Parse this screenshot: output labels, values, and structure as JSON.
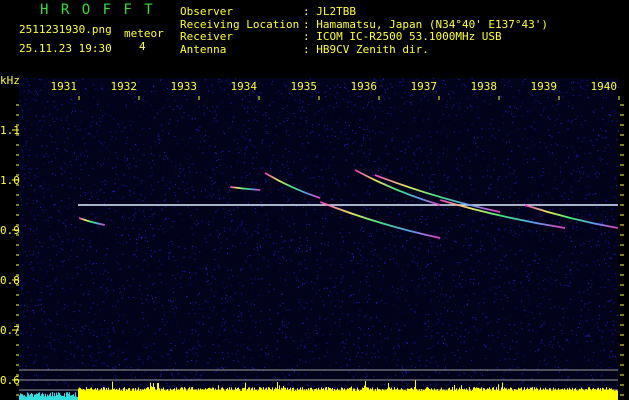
{
  "header": {
    "app_title": "H R O F F T",
    "filename": "2511231930.png",
    "datetime": "25.11.23 19:30",
    "meteor_label": "meteor",
    "meteor_count": "4",
    "info": [
      {
        "label": "Observer",
        "value": ": JL2TBB"
      },
      {
        "label": "Receiving Location",
        "value": ": Hamamatsu, Japan (N34°40' E137°43')"
      },
      {
        "label": "Receiver",
        "value": ": ICOM IC-R2500 53.1000MHz USB"
      },
      {
        "label": "Antenna",
        "value": ": HB9CV Zenith dir."
      }
    ]
  },
  "colors": {
    "text": "#ffff33",
    "title": "#33dd33",
    "background_noise": "#1a1a8c",
    "carrier": "#ddeeff",
    "level_bar": "#ffff00",
    "level_bar_start": "#33dddd"
  },
  "chart_data": {
    "type": "heatmap",
    "ylabel": "kHz",
    "x_ticks": [
      "1931",
      "1932",
      "1933",
      "1934",
      "1935",
      "1936",
      "1937",
      "1938",
      "1939",
      "1940"
    ],
    "y_ticks": [
      "1.1",
      "1.0",
      "0.9",
      "0.8",
      "0.7",
      "0.6"
    ],
    "xlim": [
      1930.8,
      1940.1
    ],
    "ylim": [
      0.56,
      1.2
    ],
    "carrier_khz": 0.95,
    "meteor_traces": [
      {
        "t": [
          1934.1,
          1935.02
        ],
        "f": [
          1.014,
          0.964
        ]
      },
      {
        "t": [
          1935.6,
          1937.02
        ],
        "f": [
          1.02,
          0.95
        ]
      },
      {
        "t": [
          1935.93,
          1938.02
        ],
        "f": [
          1.01,
          0.936
        ]
      },
      {
        "t": [
          1935.02,
          1937.02
        ],
        "f": [
          0.956,
          0.884
        ]
      },
      {
        "t": [
          1937.02,
          1939.1
        ],
        "f": [
          0.96,
          0.904
        ]
      },
      {
        "t": [
          1938.43,
          1939.98
        ],
        "f": [
          0.95,
          0.904
        ]
      },
      {
        "t": [
          1931.0,
          1931.43
        ],
        "f": [
          0.924,
          0.91
        ]
      },
      {
        "t": [
          1933.52,
          1934.02
        ],
        "f": [
          0.986,
          0.98
        ]
      }
    ]
  }
}
